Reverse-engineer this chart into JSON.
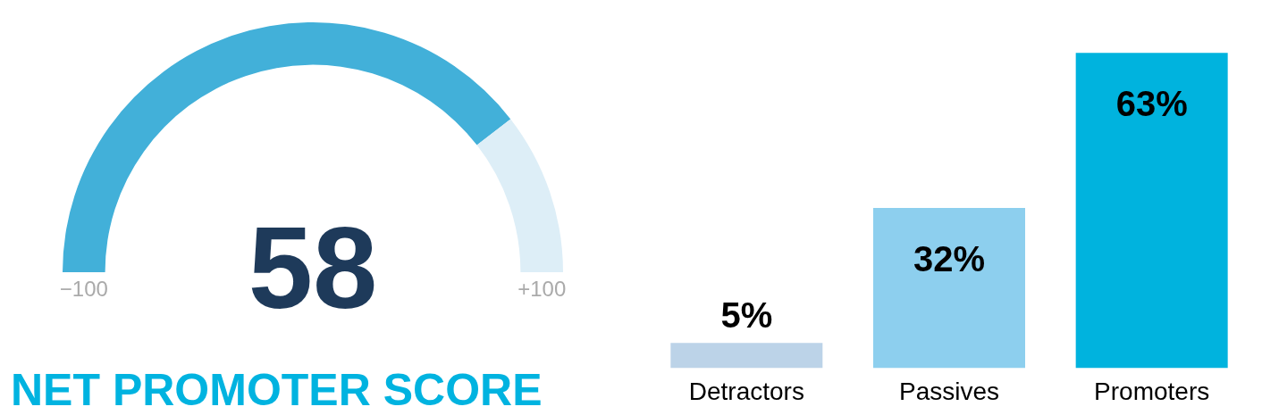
{
  "chart_data": [
    {
      "type": "donut",
      "title": "NET PROMOTER SCORE",
      "categories": [
        null,
        null
      ],
      "values": [
        79,
        21
      ],
      "colors": [
        "#42b0d9",
        "#ddeef7"
      ],
      "annotations": [
        "58",
        "−100",
        "+100"
      ]
    },
    {
      "type": "bar",
      "categories": [
        "Detractors",
        "Passives",
        "Promoters"
      ],
      "values": [
        5,
        32,
        63
      ],
      "colors": [
        "#bcd3e8",
        "#8dcfee",
        "#00b3de"
      ],
      "value_labels": [
        "5%",
        "32%",
        "63%"
      ]
    }
  ]
}
